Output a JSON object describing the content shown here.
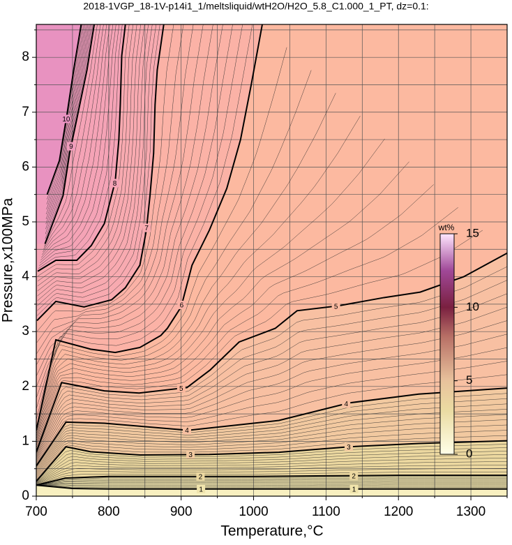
{
  "chart_data": {
    "type": "contour",
    "title": "2018-1VGP_18-1V-p14i1_1/meltsliquid/wtH2O/H2O_5.8_C1.000_1_PT, dz=0.1:",
    "xlabel": "Temperature,°C",
    "ylabel": "Pressure,x100MPa",
    "xlim": [
      700,
      1350
    ],
    "ylim": [
      0,
      8.6
    ],
    "xticks": [
      700,
      800,
      900,
      1000,
      1100,
      1200,
      1300
    ],
    "yticks": [
      0,
      1,
      2,
      3,
      4,
      5,
      6,
      7,
      8
    ],
    "xminor": [
      750,
      850,
      950,
      1050,
      1150,
      1250,
      1350
    ],
    "yminor": [
      0.5,
      1.5,
      2.5,
      3.5,
      4.5,
      5.5,
      6.5,
      7.5,
      8.5
    ],
    "grid": true,
    "base_fill": "#f8f0c0",
    "contours": [
      {
        "level": 1,
        "fill": "#f0e4ac",
        "x": [
          700,
          750,
          800,
          900,
          1000,
          1100,
          1200,
          1350
        ],
        "y": [
          0.2,
          0.14,
          0.13,
          0.13,
          0.13,
          0.13,
          0.13,
          0.13
        ]
      },
      {
        "level": 2,
        "fill": "#ecd8a0",
        "x": [
          700,
          740,
          800,
          900,
          1000,
          1100,
          1200,
          1350
        ],
        "y": [
          0.2,
          0.33,
          0.36,
          0.36,
          0.36,
          0.37,
          0.38,
          0.38
        ]
      },
      {
        "level": 3,
        "fill": "#f2c9a0",
        "x": [
          700,
          741,
          775,
          843,
          939,
          1035,
          1132,
          1228,
          1350
        ],
        "y": [
          0.27,
          0.9,
          0.81,
          0.75,
          0.76,
          0.8,
          0.9,
          0.96,
          1.01
        ]
      },
      {
        "level": 4,
        "fill": "#f8c0a2",
        "x": [
          700,
          741,
          794,
          910,
          1035,
          1132,
          1228,
          1350
        ],
        "y": [
          0.55,
          1.35,
          1.33,
          1.2,
          1.38,
          1.7,
          1.86,
          1.97
        ]
      },
      {
        "level": 5,
        "fill": "#fcb9a0",
        "x": [
          700,
          735,
          794,
          842,
          908,
          940,
          980,
          1030,
          1060,
          1117,
          1180,
          1230,
          1290,
          1350
        ],
        "y": [
          0.8,
          2.07,
          1.92,
          1.88,
          1.98,
          2.3,
          2.81,
          3.06,
          3.38,
          3.47,
          3.62,
          3.72,
          4.0,
          4.43
        ]
      },
      {
        "level": 6,
        "fill": "#fbb2a6",
        "x": [
          700,
          727,
          775,
          809,
          843,
          872,
          881,
          900,
          915,
          939,
          963,
          982,
          997,
          1012
        ],
        "y": [
          1.2,
          2.85,
          2.68,
          2.62,
          2.71,
          2.93,
          3.06,
          3.45,
          4.21,
          4.85,
          5.61,
          6.5,
          7.52,
          8.6
        ]
      },
      {
        "level": 7,
        "fill": "#f8aab0",
        "x": [
          701,
          727,
          766,
          804,
          823,
          843,
          852,
          857,
          862,
          864,
          867,
          876
        ],
        "y": [
          3.2,
          3.55,
          3.45,
          3.58,
          3.8,
          4.21,
          4.85,
          5.48,
          6.25,
          7.14,
          7.77,
          8.6
        ]
      },
      {
        "level": 8,
        "fill": "#f5a3b6",
        "x": [
          702,
          727,
          756,
          776,
          794,
          809,
          814,
          816,
          818,
          823
        ],
        "y": [
          4.1,
          4.3,
          4.3,
          4.57,
          4.97,
          5.74,
          6.5,
          7.14,
          8.03,
          8.6
        ]
      },
      {
        "level": 9,
        "fill": "#f09cbc",
        "x": [
          712,
          730,
          737,
          746,
          756,
          770,
          780
        ],
        "y": [
          4.6,
          5.23,
          5.48,
          6.25,
          6.88,
          7.77,
          8.6
        ]
      },
      {
        "level": 10,
        "fill": "#e892c0",
        "x": [
          715,
          732,
          743,
          752,
          762
        ],
        "y": [
          5.5,
          6.12,
          7.01,
          7.8,
          8.6
        ]
      }
    ],
    "colorbar": {
      "label": "wt%",
      "lim": [
        0,
        15
      ],
      "ticks": [
        0,
        5,
        10,
        15
      ],
      "stops": [
        {
          "value": 0,
          "color": "#ffffe8"
        },
        {
          "value": 3,
          "color": "#eadba2"
        },
        {
          "value": 5,
          "color": "#e8c29c"
        },
        {
          "value": 8,
          "color": "#b87066"
        },
        {
          "value": 10,
          "color": "#7a2040"
        },
        {
          "value": 12.5,
          "color": "#a04898"
        },
        {
          "value": 15,
          "color": "#ffe6ff"
        }
      ]
    }
  }
}
